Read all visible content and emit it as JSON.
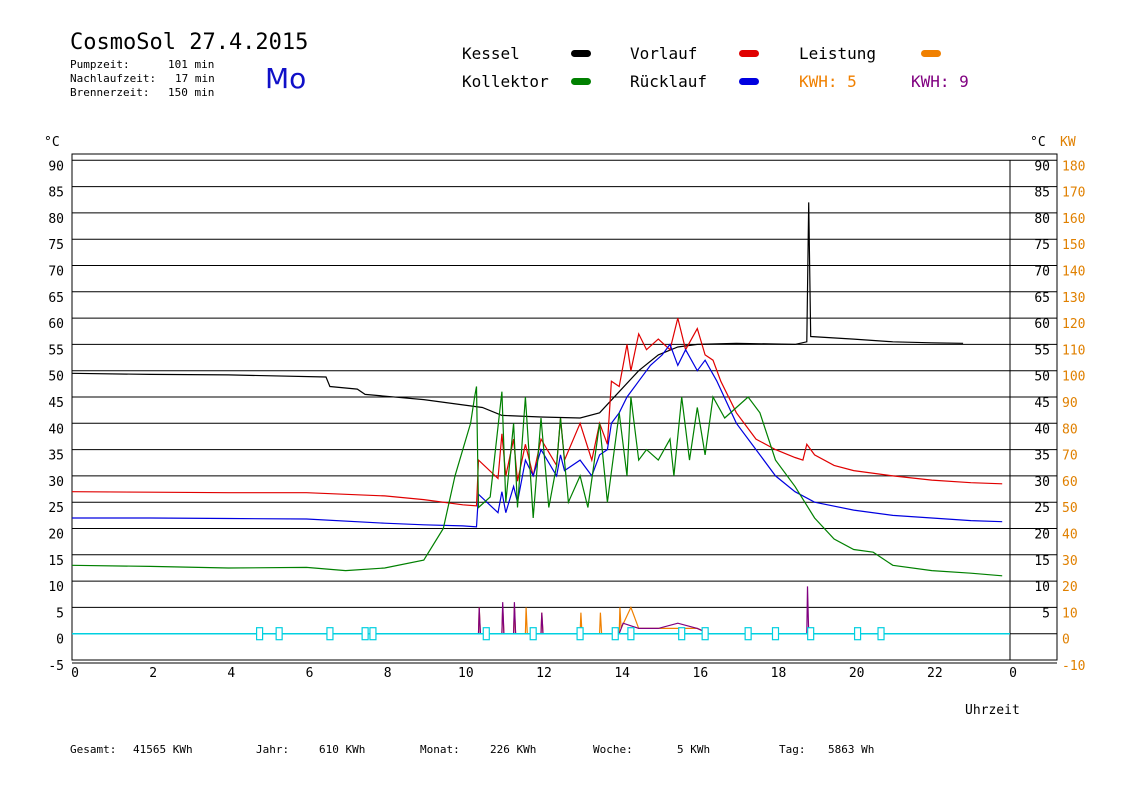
{
  "header": {
    "title": "CosmoSol 27.4.2015",
    "day": "Mo",
    "pumpzeit_label": "Pumpzeit:",
    "pumpzeit_value": "101 min",
    "nachlaufzeit_label": "Nachlaufzeit:",
    "nachlaufzeit_value": "17 min",
    "brennerzeit_label": "Brennerzeit:",
    "brennerzeit_value": "150 min"
  },
  "legend": {
    "kessel": "Kessel",
    "kollektor": "Kollektor",
    "vorlauf": "Vorlauf",
    "ruecklauf": "Rücklauf",
    "leistung": "Leistung",
    "kwh1": "KWH: 5",
    "kwh2": "KWH: 9"
  },
  "footer": {
    "gesamt_label": "Gesamt:",
    "gesamt_value": "41565 KWh",
    "jahr_label": "Jahr:",
    "jahr_value": "610 KWh",
    "monat_label": "Monat:",
    "monat_value": "226 KWh",
    "woche_label": "Woche:",
    "woche_value": "5 KWh",
    "tag_label": "Tag:",
    "tag_value": "5863 Wh"
  },
  "colors": {
    "kessel": "#000000",
    "kollektor": "#008000",
    "vorlauf": "#e00000",
    "ruecklauf": "#0000e0",
    "leistung": "#f08000",
    "kwh2": "#800080",
    "pump": "#00d0e0",
    "right_axis": "#e08000"
  },
  "chart_data": {
    "type": "line",
    "xlabel": "Uhrzeit",
    "ylabel_left": "°C",
    "ylabel_right_temp": "°C",
    "ylabel_right_power": "KW",
    "xlim": [
      0,
      24
    ],
    "ylim": [
      -5,
      95
    ],
    "x_ticks": [
      "0",
      "2",
      "4",
      "6",
      "8",
      "10",
      "12",
      "14",
      "16",
      "18",
      "20",
      "22",
      "0"
    ],
    "y_ticks_left": [
      "90",
      "85",
      "80",
      "75",
      "70",
      "65",
      "60",
      "55",
      "50",
      "45",
      "40",
      "35",
      "30",
      "25",
      "20",
      "15",
      "10",
      "5",
      "0",
      "-5"
    ],
    "y_ticks_right_temp": [
      "90",
      "85",
      "80",
      "75",
      "70",
      "65",
      "60",
      "55",
      "50",
      "45",
      "40",
      "35",
      "30",
      "25",
      "20",
      "15",
      "10",
      "5"
    ],
    "y_ticks_right_power": [
      "180",
      "170",
      "160",
      "150",
      "140",
      "130",
      "120",
      "110",
      "100",
      "90",
      "80",
      "70",
      "60",
      "50",
      "40",
      "30",
      "20",
      "10",
      "0",
      "-10"
    ],
    "series": [
      {
        "name": "Kessel",
        "points": [
          [
            0,
            49.5
          ],
          [
            2,
            49.3
          ],
          [
            4,
            49.2
          ],
          [
            6.5,
            48.8
          ],
          [
            6.6,
            47
          ],
          [
            7.3,
            46.5
          ],
          [
            7.5,
            45.5
          ],
          [
            9,
            44.5
          ],
          [
            10,
            43.5
          ],
          [
            10.5,
            43
          ],
          [
            11,
            41.5
          ],
          [
            12,
            41.2
          ],
          [
            13,
            41
          ],
          [
            13.5,
            42
          ],
          [
            14,
            46
          ],
          [
            14.5,
            50
          ],
          [
            15,
            53
          ],
          [
            15.5,
            54.5
          ],
          [
            16,
            55
          ],
          [
            17,
            55.2
          ],
          [
            18.5,
            55
          ],
          [
            18.8,
            55.5
          ],
          [
            18.85,
            82
          ],
          [
            18.9,
            56.5
          ],
          [
            20,
            56
          ],
          [
            21,
            55.5
          ],
          [
            22,
            55.3
          ],
          [
            22.8,
            55.2
          ]
        ]
      },
      {
        "name": "Vorlauf",
        "points": [
          [
            0,
            27
          ],
          [
            2,
            26.9
          ],
          [
            4,
            26.8
          ],
          [
            6,
            26.8
          ],
          [
            8,
            26.2
          ],
          [
            9,
            25.5
          ],
          [
            10,
            24.5
          ],
          [
            10.35,
            24.3
          ],
          [
            10.4,
            33
          ],
          [
            10.9,
            29.5
          ],
          [
            11,
            38
          ],
          [
            11.1,
            30
          ],
          [
            11.3,
            37
          ],
          [
            11.4,
            29
          ],
          [
            11.6,
            36
          ],
          [
            11.8,
            30
          ],
          [
            12,
            37
          ],
          [
            12.4,
            32
          ],
          [
            12.5,
            41
          ],
          [
            12.6,
            33
          ],
          [
            13,
            40
          ],
          [
            13.3,
            33
          ],
          [
            13.5,
            40
          ],
          [
            13.7,
            36
          ],
          [
            13.8,
            48
          ],
          [
            14,
            47
          ],
          [
            14.2,
            55
          ],
          [
            14.3,
            50
          ],
          [
            14.5,
            57
          ],
          [
            14.7,
            54
          ],
          [
            15,
            56
          ],
          [
            15.3,
            54
          ],
          [
            15.5,
            60
          ],
          [
            15.7,
            54
          ],
          [
            16,
            58
          ],
          [
            16.2,
            53
          ],
          [
            16.4,
            52
          ],
          [
            16.6,
            48
          ],
          [
            17,
            42
          ],
          [
            17.5,
            37
          ],
          [
            18,
            35
          ],
          [
            18.5,
            33.5
          ],
          [
            18.7,
            33
          ],
          [
            18.8,
            36
          ],
          [
            19,
            34
          ],
          [
            19.5,
            32
          ],
          [
            20,
            31
          ],
          [
            21,
            30
          ],
          [
            22,
            29.2
          ],
          [
            23,
            28.7
          ],
          [
            23.8,
            28.5
          ]
        ]
      },
      {
        "name": "Rücklauf",
        "points": [
          [
            0,
            22
          ],
          [
            2,
            22
          ],
          [
            4,
            21.9
          ],
          [
            6,
            21.8
          ],
          [
            8,
            21
          ],
          [
            9,
            20.7
          ],
          [
            10,
            20.5
          ],
          [
            10.35,
            20.3
          ],
          [
            10.4,
            26.5
          ],
          [
            10.9,
            23
          ],
          [
            11,
            27
          ],
          [
            11.1,
            23
          ],
          [
            11.3,
            28
          ],
          [
            11.4,
            25
          ],
          [
            11.6,
            33
          ],
          [
            11.8,
            30
          ],
          [
            12,
            35
          ],
          [
            12.4,
            30
          ],
          [
            12.5,
            34
          ],
          [
            12.6,
            31
          ],
          [
            13,
            33
          ],
          [
            13.3,
            30
          ],
          [
            13.5,
            34
          ],
          [
            13.7,
            35
          ],
          [
            13.8,
            40
          ],
          [
            14,
            42
          ],
          [
            14.2,
            45
          ],
          [
            14.5,
            48
          ],
          [
            14.8,
            51
          ],
          [
            15.1,
            53
          ],
          [
            15.3,
            55
          ],
          [
            15.5,
            51
          ],
          [
            15.7,
            54
          ],
          [
            16,
            50
          ],
          [
            16.2,
            52
          ],
          [
            16.5,
            48
          ],
          [
            17,
            40
          ],
          [
            17.5,
            35
          ],
          [
            18,
            30
          ],
          [
            18.5,
            27
          ],
          [
            19,
            25
          ],
          [
            20,
            23.5
          ],
          [
            21,
            22.5
          ],
          [
            22,
            22
          ],
          [
            23,
            21.5
          ],
          [
            23.8,
            21.3
          ]
        ]
      },
      {
        "name": "Kollektor",
        "points": [
          [
            0,
            13
          ],
          [
            2,
            12.8
          ],
          [
            4,
            12.5
          ],
          [
            6,
            12.6
          ],
          [
            7,
            12
          ],
          [
            8,
            12.5
          ],
          [
            9,
            14
          ],
          [
            9.5,
            20
          ],
          [
            9.8,
            30
          ],
          [
            10,
            35
          ],
          [
            10.2,
            40
          ],
          [
            10.3,
            45
          ],
          [
            10.35,
            47
          ],
          [
            10.4,
            24
          ],
          [
            10.7,
            26
          ],
          [
            11,
            46
          ],
          [
            11.1,
            25
          ],
          [
            11.3,
            40
          ],
          [
            11.4,
            24
          ],
          [
            11.6,
            45
          ],
          [
            11.8,
            22
          ],
          [
            12,
            41
          ],
          [
            12.2,
            24
          ],
          [
            12.4,
            32
          ],
          [
            12.5,
            41
          ],
          [
            12.7,
            25
          ],
          [
            13,
            30
          ],
          [
            13.2,
            24
          ],
          [
            13.5,
            40
          ],
          [
            13.7,
            25
          ],
          [
            14,
            42
          ],
          [
            14.2,
            30
          ],
          [
            14.3,
            45
          ],
          [
            14.5,
            33
          ],
          [
            14.7,
            35
          ],
          [
            15,
            33
          ],
          [
            15.3,
            37
          ],
          [
            15.4,
            30
          ],
          [
            15.6,
            45
          ],
          [
            15.8,
            33
          ],
          [
            16,
            43
          ],
          [
            16.2,
            34
          ],
          [
            16.4,
            45
          ],
          [
            16.7,
            41
          ],
          [
            17,
            43
          ],
          [
            17.3,
            45
          ],
          [
            17.6,
            42
          ],
          [
            18,
            33
          ],
          [
            18.5,
            28
          ],
          [
            19,
            22
          ],
          [
            19.5,
            18
          ],
          [
            20,
            16
          ],
          [
            20.5,
            15.5
          ],
          [
            21,
            13
          ],
          [
            22,
            12
          ],
          [
            23,
            11.5
          ],
          [
            23.8,
            11
          ]
        ]
      },
      {
        "name": "Leistung",
        "points": [
          [
            10.4,
            0
          ],
          [
            10.42,
            5
          ],
          [
            10.45,
            0
          ],
          [
            11,
            0
          ],
          [
            11.02,
            5
          ],
          [
            11.05,
            0
          ],
          [
            11.3,
            0
          ],
          [
            11.32,
            5
          ],
          [
            11.35,
            0
          ],
          [
            11.6,
            0
          ],
          [
            11.62,
            5
          ],
          [
            11.65,
            0
          ],
          [
            12,
            0
          ],
          [
            12.02,
            4
          ],
          [
            12.05,
            0
          ],
          [
            13,
            0
          ],
          [
            13.02,
            4
          ],
          [
            13.05,
            0
          ],
          [
            13.5,
            0
          ],
          [
            13.52,
            4
          ],
          [
            13.55,
            0
          ],
          [
            14,
            0
          ],
          [
            14.02,
            5
          ],
          [
            14.05,
            1
          ],
          [
            14.3,
            5
          ],
          [
            14.5,
            1
          ],
          [
            15,
            1
          ],
          [
            15.5,
            1
          ],
          [
            16,
            1
          ],
          [
            16.3,
            0
          ]
        ]
      },
      {
        "name": "KWH: 9",
        "points": [
          [
            10.4,
            0
          ],
          [
            10.42,
            5
          ],
          [
            10.45,
            0
          ],
          [
            11,
            0
          ],
          [
            11.02,
            6
          ],
          [
            11.05,
            0
          ],
          [
            11.3,
            0
          ],
          [
            11.32,
            6
          ],
          [
            11.35,
            0
          ],
          [
            12,
            0
          ],
          [
            12.02,
            4
          ],
          [
            12.05,
            0
          ],
          [
            14,
            0
          ],
          [
            14.1,
            2
          ],
          [
            14.5,
            1
          ],
          [
            15,
            1
          ],
          [
            15.5,
            2
          ],
          [
            16,
            1
          ],
          [
            16.3,
            0
          ],
          [
            18.8,
            0
          ],
          [
            18.82,
            9
          ],
          [
            18.85,
            0
          ]
        ]
      }
    ],
    "pump_markers": [
      4.8,
      5.3,
      6.6,
      7.5,
      7.7,
      10.6,
      11.8,
      13.0,
      13.9,
      14.3,
      15.6,
      16.2,
      17.3,
      18.0,
      18.9,
      20.1,
      20.7
    ]
  }
}
